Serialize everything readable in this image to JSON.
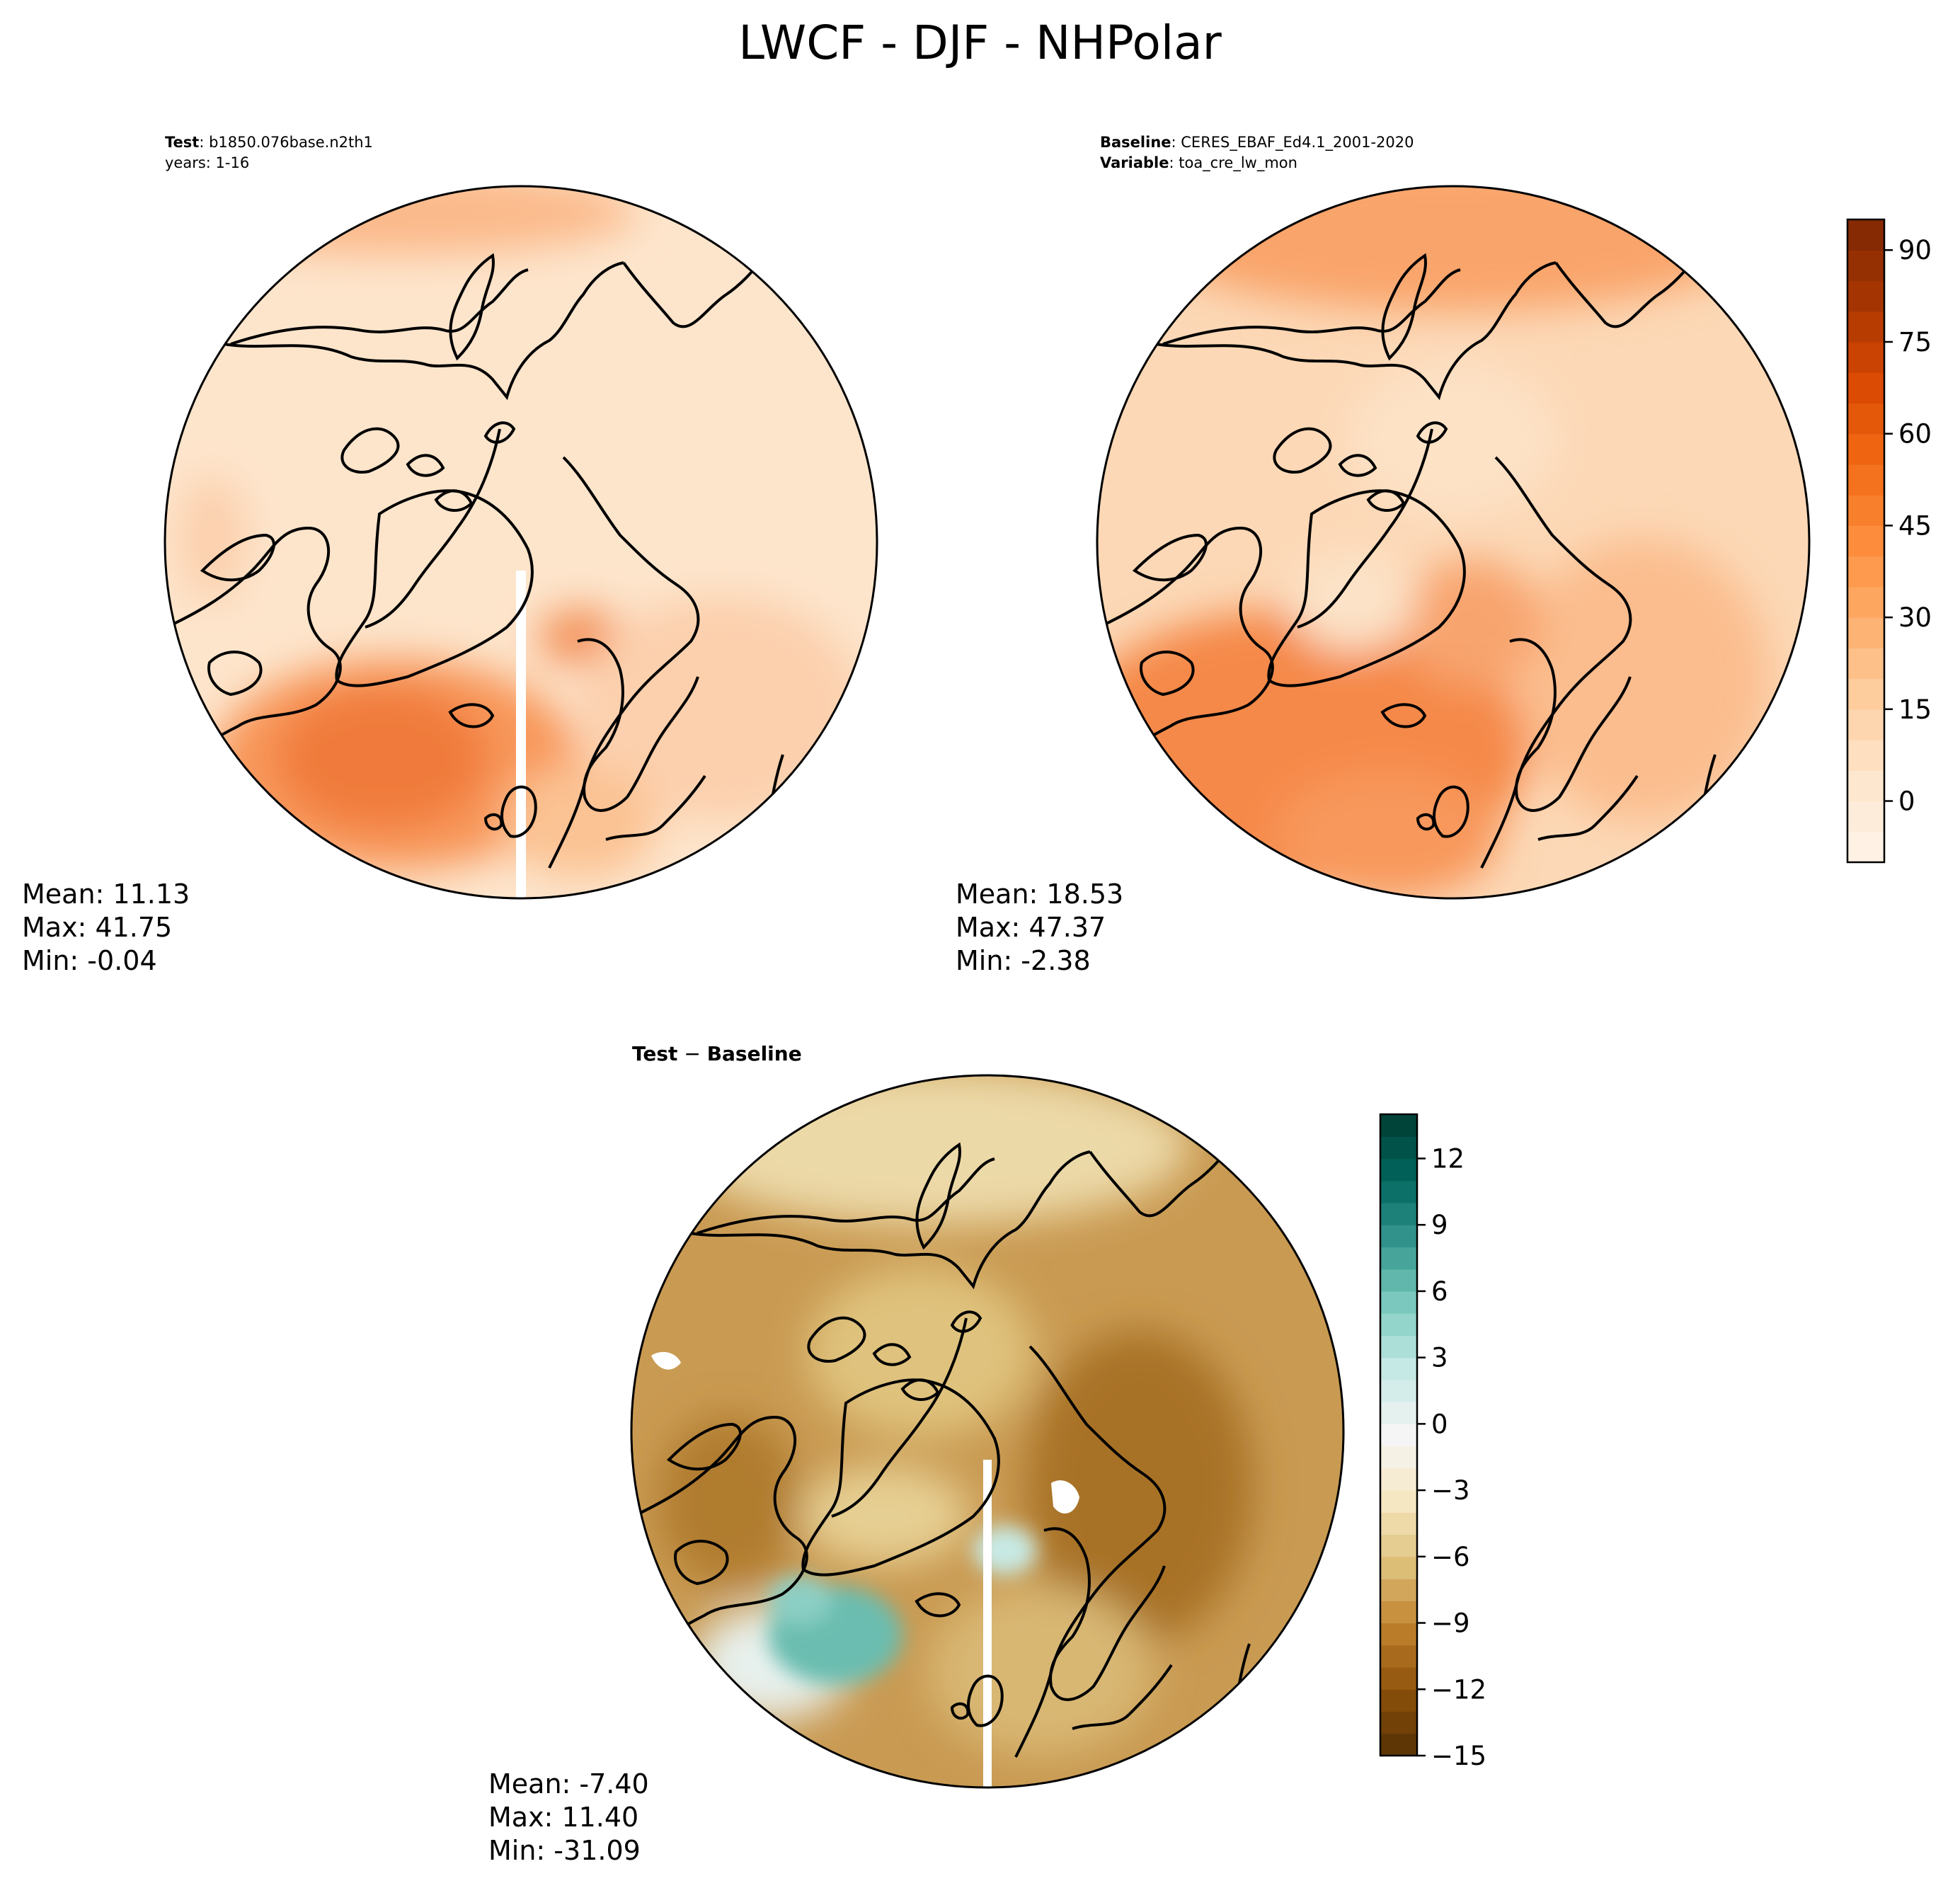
{
  "title": "LWCF - DJF - NHPolar",
  "panels": {
    "test": {
      "header_line1_bold": "Test",
      "header_line1_text": ": b1850.076base.n2th1",
      "header_line2": "years: 1-16",
      "stats": {
        "mean": "Mean: 11.13",
        "max": "Max: 41.75",
        "min": "Min: -0.04"
      }
    },
    "baseline": {
      "header_line1_bold": "Baseline",
      "header_line1_text": ": CERES_EBAF_Ed4.1_2001-2020",
      "header_line2_bold": "Variable",
      "header_line2_text": ": toa_cre_lw_mon",
      "stats": {
        "mean": "Mean: 18.53",
        "max": "Max: 47.37",
        "min": "Min: -2.38"
      }
    },
    "diff": {
      "header_a": "Test",
      "header_sep": " − ",
      "header_b": "Baseline",
      "stats": {
        "mean": "Mean: -7.40",
        "max": "Max: 11.40",
        "min": "Min: -31.09"
      }
    }
  },
  "colorbars": {
    "top": {
      "ticks": [
        "90",
        "75",
        "60",
        "45",
        "30",
        "15",
        "0"
      ],
      "tick_values": [
        90,
        75,
        60,
        45,
        30,
        15,
        0
      ],
      "range": [
        -10,
        95
      ],
      "palette": "Oranges",
      "colors": [
        "#fff5eb",
        "#fee6ce",
        "#fdd0a2",
        "#fdae6b",
        "#fd8d3c",
        "#f16913",
        "#d94801",
        "#a63603",
        "#7f2704"
      ]
    },
    "bottom": {
      "ticks": [
        "12",
        "9",
        "6",
        "3",
        "0",
        "−3",
        "−6",
        "−9",
        "−12",
        "−15"
      ],
      "tick_values": [
        12,
        9,
        6,
        3,
        0,
        -3,
        -6,
        -9,
        -12,
        -15
      ],
      "range": [
        -15,
        14
      ],
      "palette": "BrBG",
      "colors": [
        "#543005",
        "#8c510a",
        "#bf812d",
        "#dfc27d",
        "#f6e8c3",
        "#f5f5f5",
        "#c7eae5",
        "#80cdc1",
        "#35978f",
        "#01665e",
        "#003c30"
      ]
    }
  }
}
